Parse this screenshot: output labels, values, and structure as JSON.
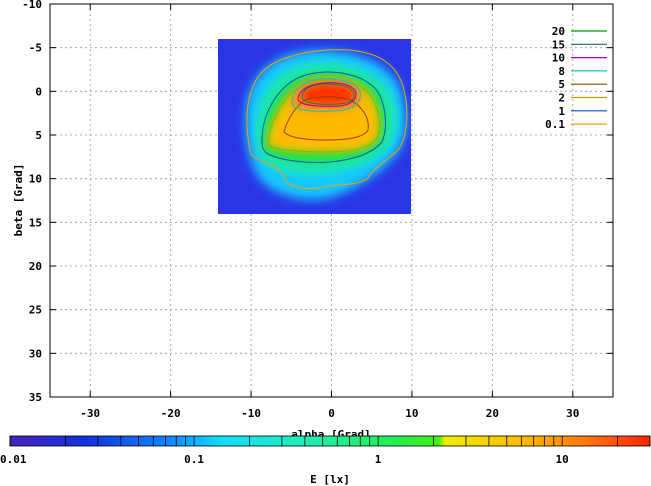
{
  "chart_data": {
    "type": "heatmap",
    "xlabel": "alpha [Grad]",
    "ylabel": "beta [Grad]",
    "xlim": [
      -35,
      35
    ],
    "ylim": [
      -10,
      35
    ],
    "y_inverted": true,
    "grid": true,
    "x_ticks": [
      "-30",
      "-20",
      "-10",
      "0",
      "10",
      "20",
      "30"
    ],
    "y_ticks": [
      "-10",
      "-5",
      "0",
      "5",
      "10",
      "15",
      "20",
      "25",
      "30",
      "35"
    ],
    "heatmap_extent": {
      "alpha": [
        -14,
        10
      ],
      "beta": [
        -6,
        14
      ]
    },
    "legend_position": "top-right",
    "contours": [
      {
        "label": "20",
        "color": "#009900"
      },
      {
        "label": "15",
        "color": "#1a7a3a"
      },
      {
        "label": "10",
        "color": "#9900cc"
      },
      {
        "label": "8",
        "color": "#00cccc"
      },
      {
        "label": "5",
        "color": "#994400"
      },
      {
        "label": "2",
        "color": "#aaaa00"
      },
      {
        "label": "1",
        "color": "#0055cc"
      },
      {
        "label": "0.1",
        "color": "#e6a800"
      }
    ],
    "colorbar": {
      "label": "E [lx]",
      "scale": "log",
      "range": [
        0.01,
        30
      ],
      "ticks": [
        "0.01",
        "0.1",
        "1",
        "10"
      ],
      "stops": [
        {
          "pos": 0.0,
          "color": "#4422bb"
        },
        {
          "pos": 0.12,
          "color": "#1133dd"
        },
        {
          "pos": 0.25,
          "color": "#1188ff"
        },
        {
          "pos": 0.33,
          "color": "#11ddff"
        },
        {
          "pos": 0.45,
          "color": "#22eebb"
        },
        {
          "pos": 0.6,
          "color": "#22ee55"
        },
        {
          "pos": 0.67,
          "color": "#44ee11"
        },
        {
          "pos": 0.68,
          "color": "#eeee00"
        },
        {
          "pos": 0.8,
          "color": "#ffbb00"
        },
        {
          "pos": 0.9,
          "color": "#ff7711"
        },
        {
          "pos": 1.0,
          "color": "#ff2200"
        }
      ]
    }
  }
}
